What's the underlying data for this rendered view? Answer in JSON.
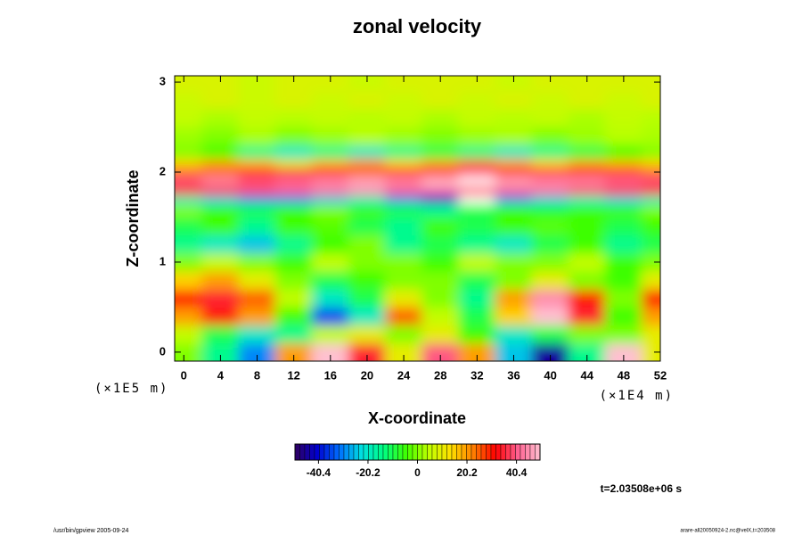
{
  "chart_data": {
    "type": "heatmap",
    "title": "zonal velocity",
    "xlabel": "X-coordinate",
    "ylabel": "Z-coordinate",
    "y_unit": "(×1E5 m)",
    "x_unit": "(×1E4 m)",
    "time_label": "t=2.03508e+06 s",
    "footer_left": "/usr/bin/gpview 2005-09-24",
    "footer_right": "arare-all20050924-2.nc@velX,t=203508",
    "x": [
      0,
      4,
      8,
      12,
      16,
      20,
      24,
      28,
      32,
      36,
      40,
      44,
      48,
      52
    ],
    "y": [
      0,
      0.2,
      0.4,
      0.6,
      0.8,
      1.0,
      1.2,
      1.4,
      1.6,
      1.7,
      1.8,
      1.9,
      2.0,
      2.1,
      2.2,
      2.4,
      2.6,
      2.8,
      3.0
    ],
    "values": [
      [
        0,
        -15,
        -30,
        20,
        50,
        35,
        10,
        40,
        20,
        -25,
        -45,
        -15,
        50,
        10
      ],
      [
        5,
        -10,
        -20,
        -15,
        5,
        10,
        0,
        10,
        -5,
        -20,
        -10,
        0,
        0,
        10
      ],
      [
        20,
        30,
        20,
        -5,
        -35,
        -20,
        25,
        5,
        -10,
        15,
        50,
        35,
        -5,
        20
      ],
      [
        30,
        35,
        25,
        5,
        -20,
        -10,
        10,
        0,
        -15,
        20,
        45,
        30,
        0,
        30
      ],
      [
        15,
        20,
        10,
        0,
        -10,
        -5,
        0,
        0,
        -10,
        0,
        10,
        0,
        -5,
        10
      ],
      [
        0,
        5,
        0,
        -5,
        5,
        0,
        0,
        -5,
        5,
        0,
        0,
        5,
        -5,
        0
      ],
      [
        -15,
        -20,
        -25,
        -15,
        -5,
        0,
        -15,
        -10,
        -15,
        -20,
        -10,
        -5,
        -15,
        -10
      ],
      [
        -10,
        -5,
        -15,
        -5,
        -3,
        -10,
        -15,
        -5,
        -10,
        -5,
        -3,
        -5,
        -10,
        -5
      ],
      [
        0,
        -5,
        -10,
        -5,
        0,
        -5,
        -10,
        -15,
        -10,
        -5,
        -8,
        -5,
        -5,
        0
      ],
      [
        -20,
        -25,
        -30,
        -30,
        -25,
        -20,
        -30,
        -40,
        -55,
        -30,
        -25,
        -20,
        -25,
        -20
      ],
      [
        30,
        35,
        38,
        40,
        42,
        45,
        40,
        42,
        38,
        40,
        42,
        38,
        35,
        30
      ],
      [
        40,
        45,
        40,
        42,
        45,
        48,
        45,
        50,
        52,
        48,
        45,
        45,
        42,
        40
      ],
      [
        25,
        25,
        30,
        35,
        30,
        25,
        30,
        35,
        40,
        35,
        35,
        30,
        30,
        25
      ],
      [
        15,
        20,
        18,
        10,
        18,
        22,
        15,
        20,
        25,
        20,
        15,
        20,
        18,
        15
      ],
      [
        0,
        -5,
        -15,
        -20,
        -15,
        -20,
        -15,
        -10,
        -15,
        -20,
        -15,
        -10,
        -5,
        0
      ],
      [
        2,
        0,
        3,
        0,
        2,
        4,
        2,
        0,
        2,
        3,
        0,
        2,
        4,
        3
      ],
      [
        5,
        3,
        5,
        4,
        5,
        4,
        5,
        3,
        5,
        4,
        5,
        3,
        5,
        4
      ],
      [
        6,
        8,
        6,
        8,
        6,
        8,
        6,
        8,
        6,
        8,
        6,
        8,
        6,
        8
      ],
      [
        8,
        8,
        6,
        8,
        8,
        6,
        8,
        8,
        8,
        6,
        8,
        8,
        8,
        8
      ]
    ],
    "xlim": [
      -1,
      52
    ],
    "ylim": [
      -0.1,
      3.07
    ],
    "xticks": [
      0,
      4,
      8,
      12,
      16,
      20,
      24,
      28,
      32,
      36,
      40,
      44,
      48,
      52
    ],
    "yticks": [
      0,
      1,
      2,
      3
    ],
    "clim": [
      -50,
      50
    ],
    "cticks": [
      -40.4,
      -20.2,
      0,
      20.2,
      40.4
    ],
    "colormap": [
      "#300060",
      "#0000d0",
      "#0070ff",
      "#00e0e0",
      "#00ff80",
      "#40ff00",
      "#c0ff00",
      "#ffe000",
      "#ff8000",
      "#ff0000",
      "#ff6090",
      "#ffc0d0"
    ],
    "out_of_range_color": "#ffffff"
  }
}
